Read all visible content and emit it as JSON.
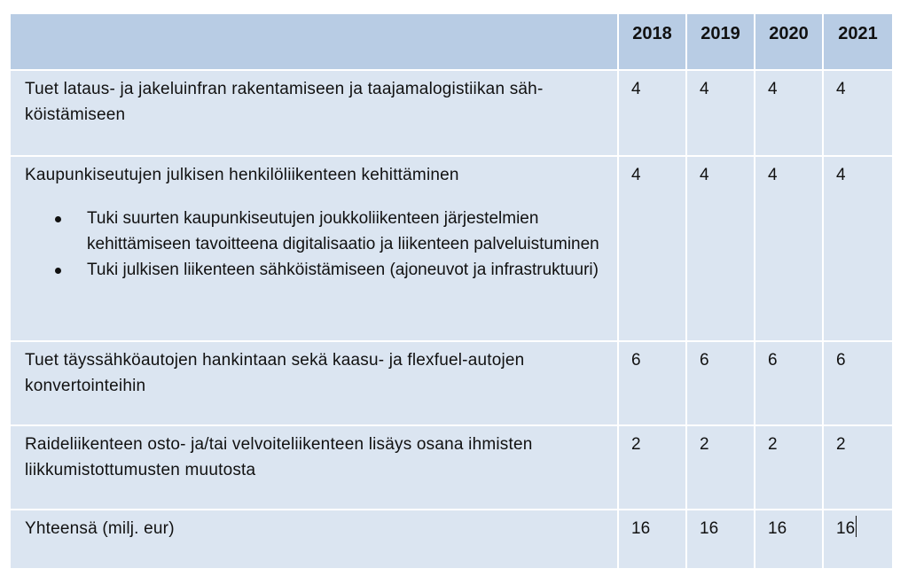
{
  "table": {
    "years": [
      "2018",
      "2019",
      "2020",
      "2021"
    ],
    "rows": [
      {
        "label": "Tuet lataus- ja jakeluinfran rakentamiseen ja taajamalogistiikan säh­köistämiseen",
        "values": [
          "4",
          "4",
          "4",
          "4"
        ]
      },
      {
        "label": "Kaupunkiseutujen julkisen henkilöliikenteen kehittäminen",
        "bullets": [
          "Tuki suurten kaupunkiseutujen joukkoliikenteen järjestelmien kehittämiseen tavoitteena digitalisaatio ja liikenteen palve­luistuminen",
          "Tuki julkisen liikenteen sähköistämiseen (ajoneuvot ja infra­struktuuri)"
        ],
        "values": [
          "4",
          "4",
          "4",
          "4"
        ]
      },
      {
        "label": "Tuet täyssähköautojen hankintaan sekä kaasu- ja flexfuel-autojen konvertointeihin",
        "values": [
          "6",
          "6",
          "6",
          "6"
        ]
      },
      {
        "label": "Raideliikenteen osto- ja/tai velvoiteliikenteen lisäys osana ihmisten liikkumistottumusten muutosta",
        "values": [
          "2",
          "2",
          "2",
          "2"
        ]
      },
      {
        "label": "Yhteensä (milj. eur)",
        "values": [
          "16",
          "16",
          "16",
          "16"
        ]
      }
    ]
  }
}
